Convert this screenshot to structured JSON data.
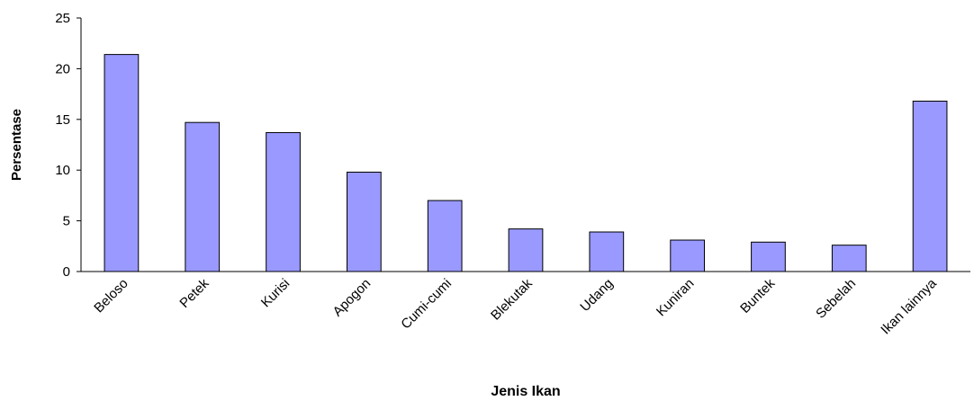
{
  "chart_data": {
    "type": "bar",
    "categories": [
      "Beloso",
      "Petek",
      "Kurisi",
      "Apogon",
      "Cumi-cumi",
      "Blekutak",
      "Udang",
      "Kuniran",
      "Buntek",
      "Sebelah",
      "Ikan lainnya"
    ],
    "values": [
      21.4,
      14.7,
      13.7,
      9.8,
      7.0,
      4.2,
      3.9,
      3.1,
      2.9,
      2.6,
      16.8
    ],
    "color": "#9999ff",
    "xlabel": "Jenis Ikan",
    "ylabel": "Persentase",
    "ylim": [
      0,
      25
    ],
    "yticks": [
      0,
      5,
      10,
      15,
      20,
      25
    ],
    "grid": false
  }
}
